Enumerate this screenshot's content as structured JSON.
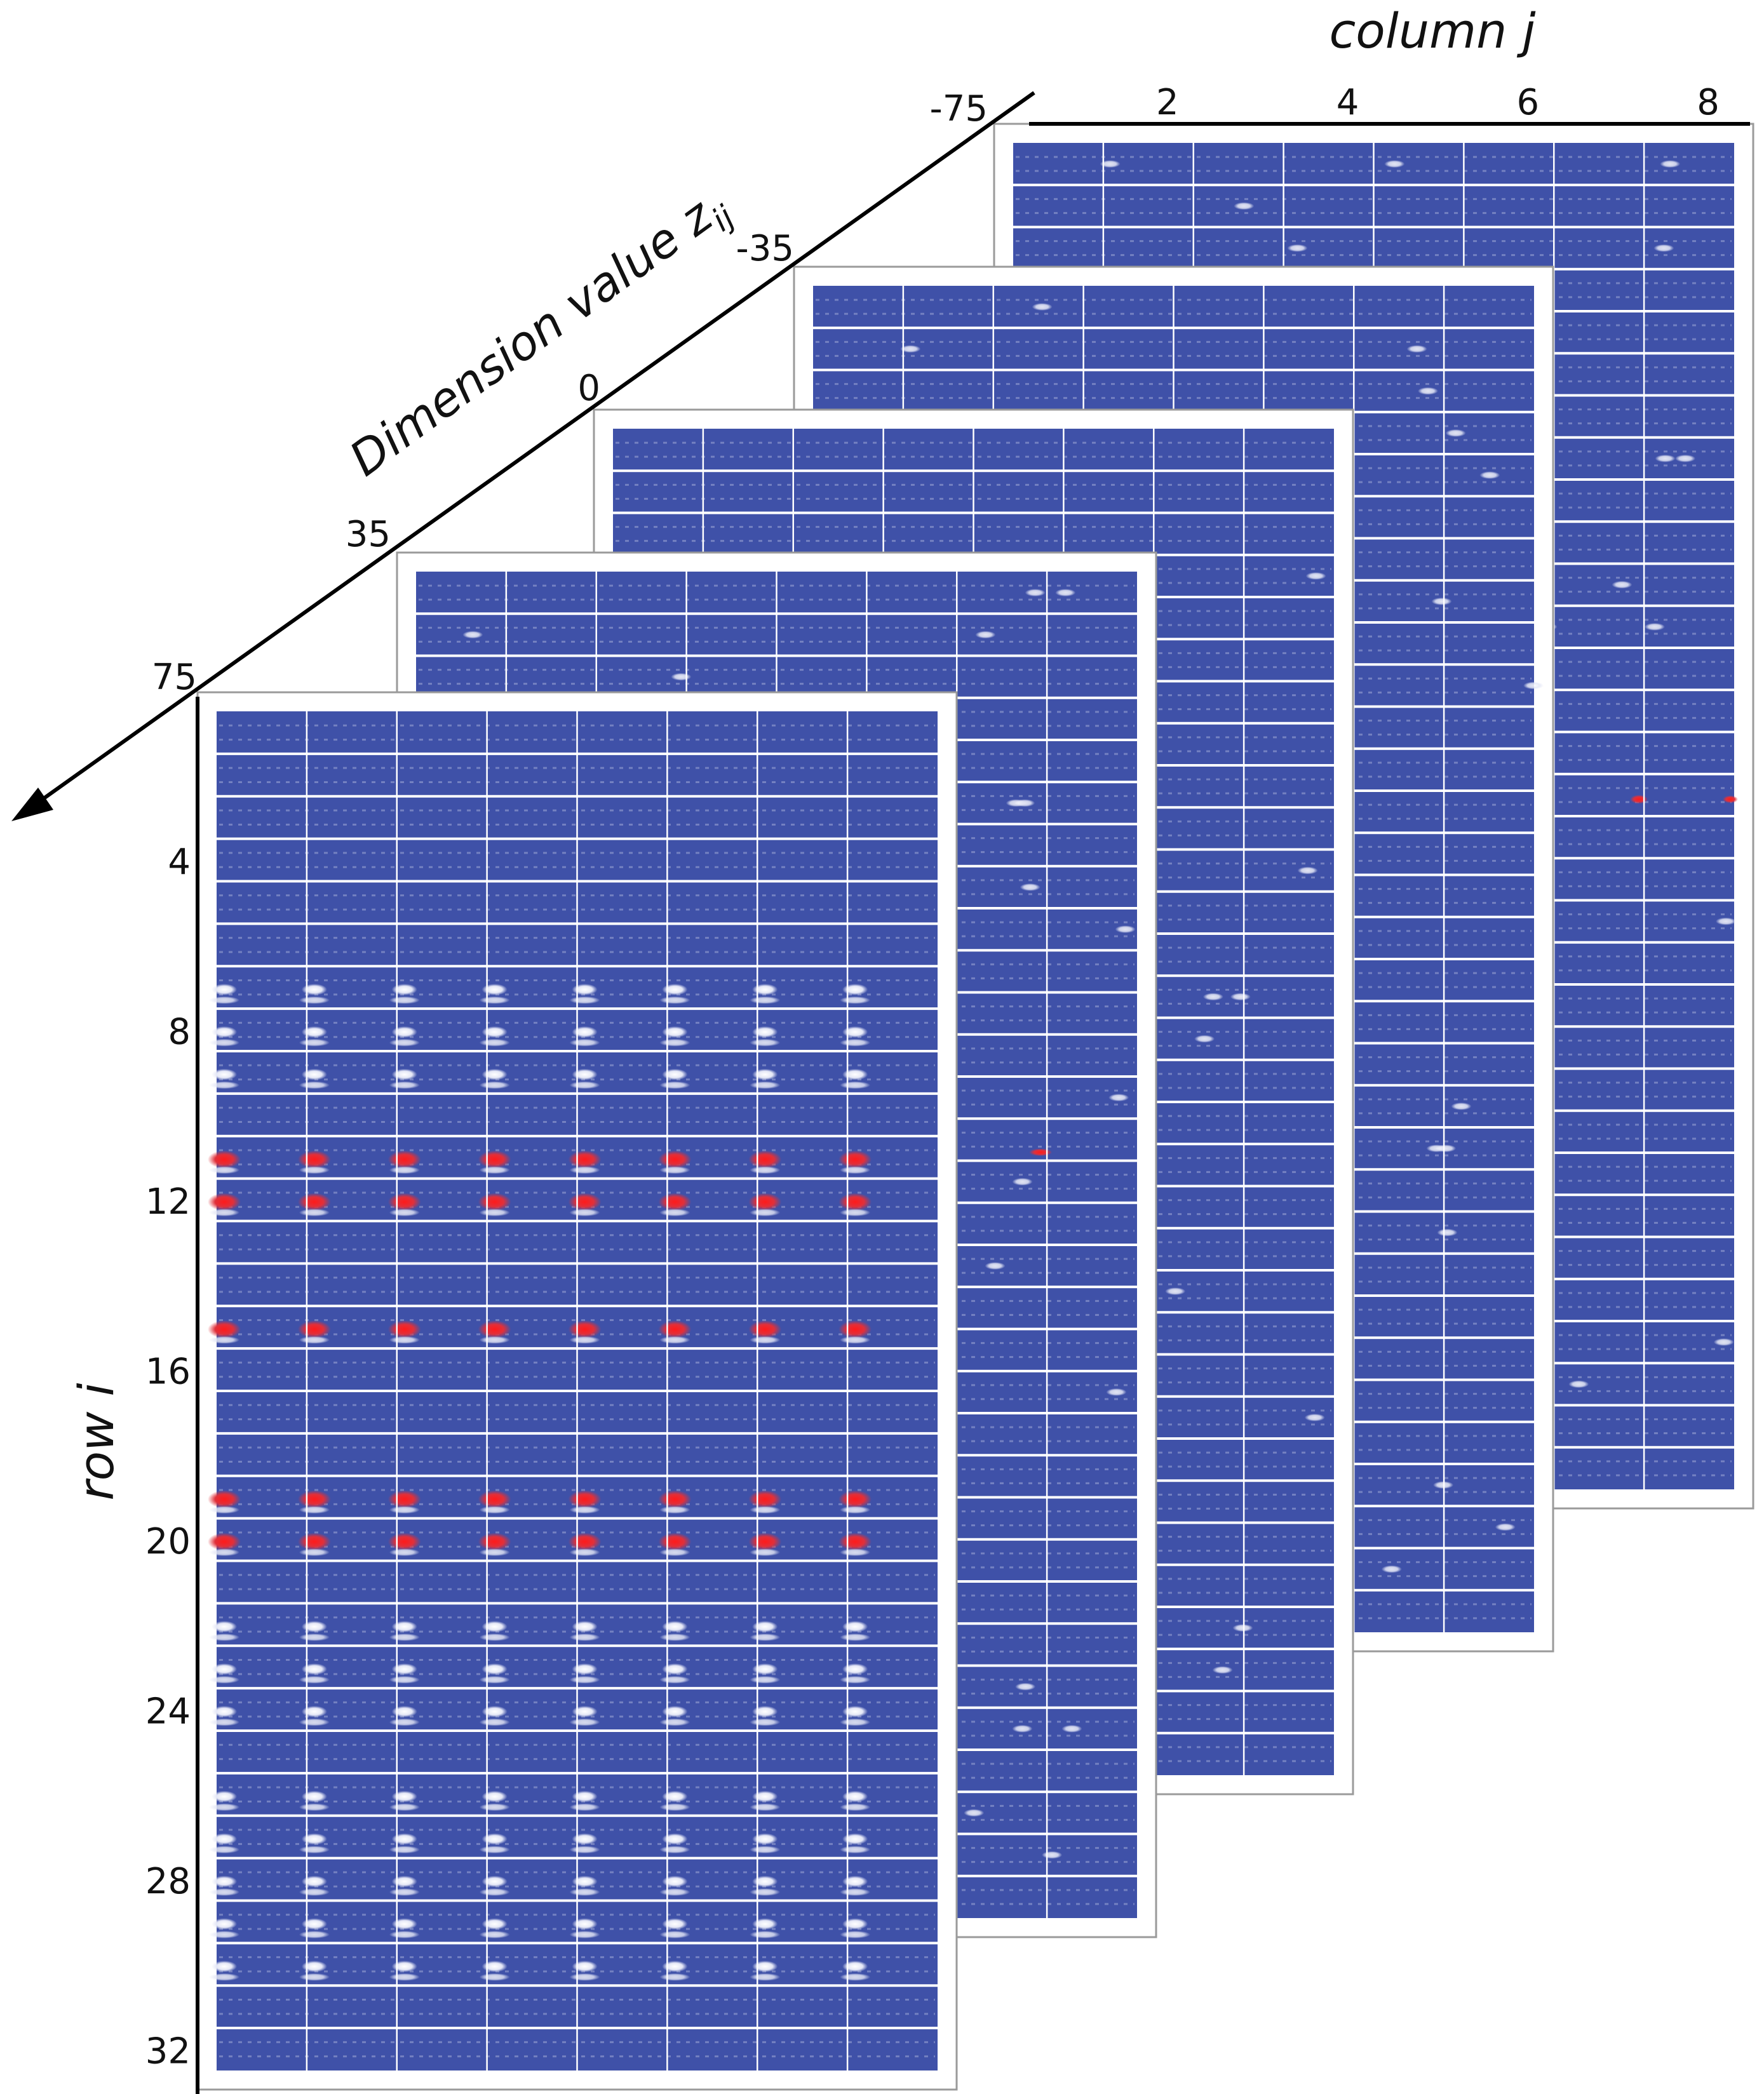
{
  "labels": {
    "column_axis": "column j",
    "row_axis": "row i",
    "depth_axis_prefix": "Dimension value z",
    "depth_axis_subscript": "ij"
  },
  "column_ticks": [
    "2",
    "4",
    "6",
    "8"
  ],
  "row_ticks": [
    "4",
    "8",
    "12",
    "16",
    "20",
    "24",
    "28",
    "32"
  ],
  "depth_ticks": [
    "-75",
    "-35",
    "0",
    "35",
    "75"
  ],
  "grid": {
    "rows": 32,
    "columns": 8,
    "slices": 5
  },
  "colors": {
    "heatmap_base": "#3f51a8",
    "cell_divider": "#ffffff",
    "low_intensity": "#d8dcf0",
    "high_intensity": "#e0202a",
    "frame_border": "#9a9a9a",
    "axis_line": "#000000"
  },
  "hotspot_rows": {
    "front_slice_red": [
      11,
      12,
      15,
      19,
      20
    ],
    "front_slice_white": [
      7,
      8,
      9,
      22,
      23,
      24,
      26,
      27,
      28,
      29,
      30
    ]
  }
}
